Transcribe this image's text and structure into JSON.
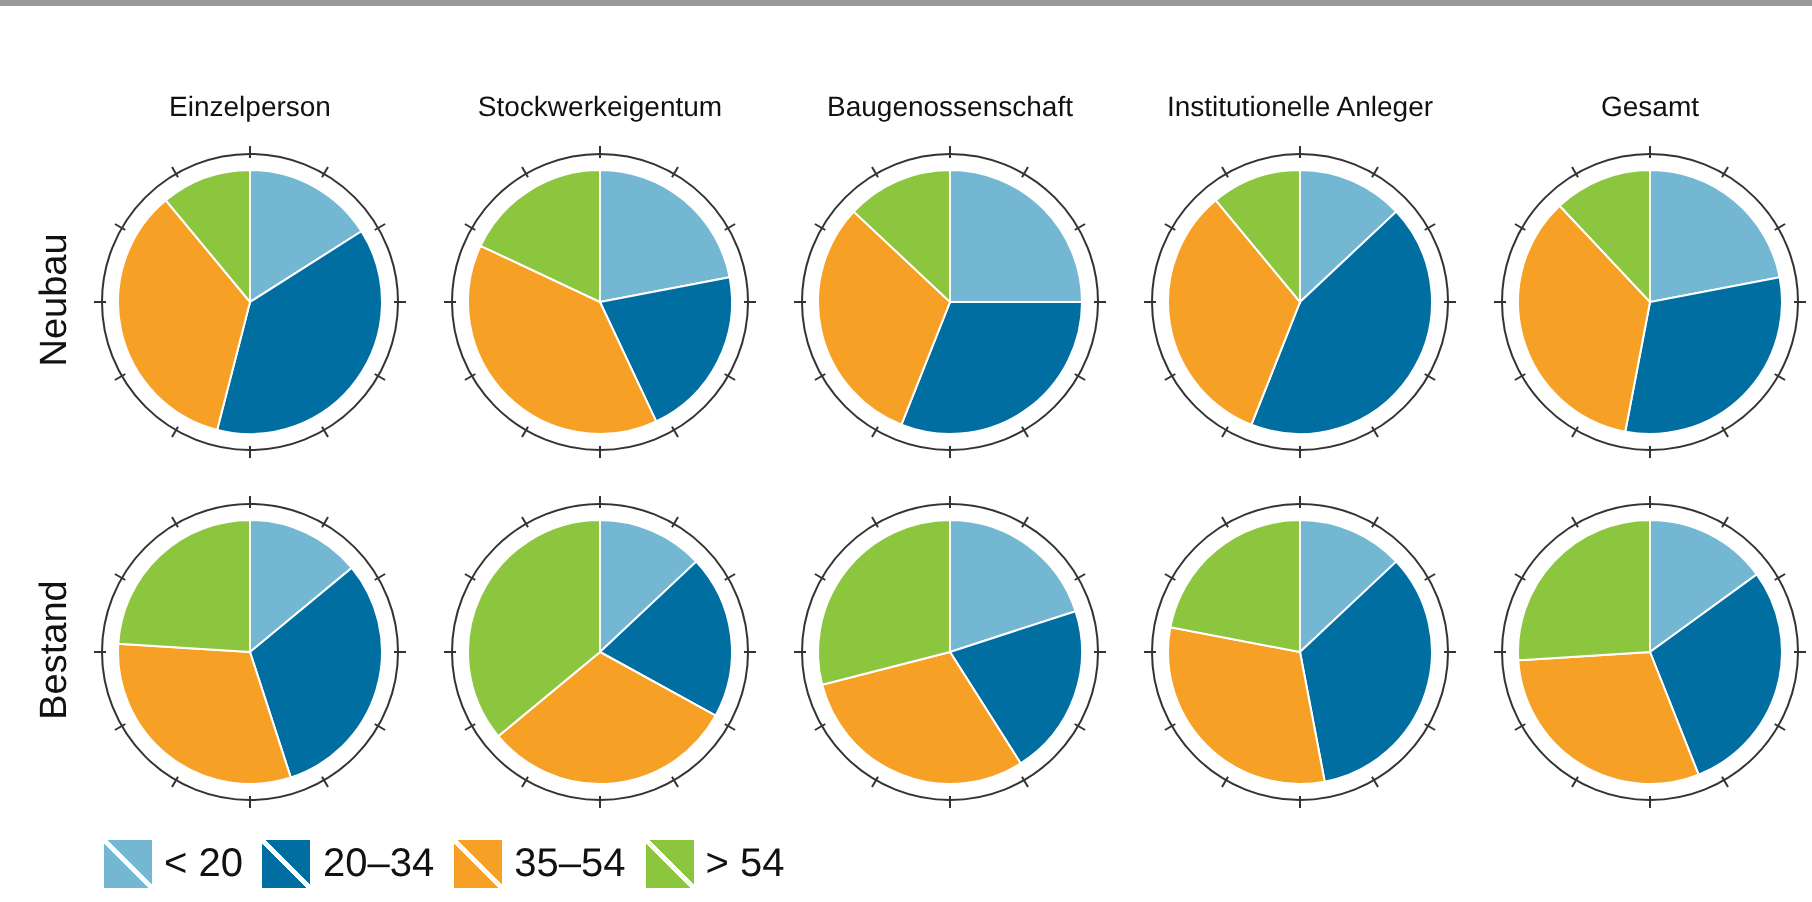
{
  "chart_data": [
    {
      "type": "pie",
      "title": "Einzelperson",
      "ylabel": "Neubau",
      "legend": "bottom",
      "categories": [
        "< 20",
        "20–34",
        "35–54",
        "> 54"
      ],
      "values": [
        16,
        38,
        35,
        11
      ],
      "colors": [
        "#74b7d3",
        "#006ea1",
        "#f7a026",
        "#8cc63f"
      ]
    },
    {
      "type": "pie",
      "title": "Stockwerkeigentum",
      "categories": [
        null,
        null,
        null,
        null
      ],
      "values": [
        22,
        21,
        39,
        18
      ],
      "colors": [
        "#74b7d3",
        "#006ea1",
        "#f7a026",
        "#8cc63f"
      ]
    },
    {
      "type": "pie",
      "title": "Baugenossenschaft",
      "categories": [
        null,
        null,
        null,
        null
      ],
      "values": [
        25,
        31,
        31,
        13
      ],
      "colors": [
        "#74b7d3",
        "#006ea1",
        "#f7a026",
        "#8cc63f"
      ]
    },
    {
      "type": "pie",
      "title": "Institutionelle Anleger",
      "categories": [
        null,
        null,
        null,
        null
      ],
      "values": [
        13,
        43,
        33,
        11
      ],
      "colors": [
        "#74b7d3",
        "#006ea1",
        "#f7a026",
        "#8cc63f"
      ]
    },
    {
      "type": "pie",
      "title": "Gesamt",
      "categories": [
        null,
        null,
        null,
        null
      ],
      "values": [
        22,
        31,
        35,
        12
      ],
      "colors": [
        "#74b7d3",
        "#006ea1",
        "#f7a026",
        "#8cc63f"
      ]
    },
    {
      "type": "pie",
      "ylabel": "Bestand",
      "categories": [
        null,
        null,
        null,
        null
      ],
      "values": [
        14,
        31,
        31,
        24
      ],
      "colors": [
        "#74b7d3",
        "#006ea1",
        "#f7a026",
        "#8cc63f"
      ]
    },
    {
      "type": "pie",
      "categories": [
        null,
        null,
        null,
        null
      ],
      "values": [
        13,
        20,
        31,
        36
      ],
      "colors": [
        "#74b7d3",
        "#006ea1",
        "#f7a026",
        "#8cc63f"
      ]
    },
    {
      "type": "pie",
      "categories": [
        null,
        null,
        null,
        null
      ],
      "values": [
        20,
        21,
        30,
        29
      ],
      "colors": [
        "#74b7d3",
        "#006ea1",
        "#f7a026",
        "#8cc63f"
      ]
    },
    {
      "type": "pie",
      "categories": [
        null,
        null,
        null,
        null
      ],
      "values": [
        13,
        34,
        31,
        22
      ],
      "colors": [
        "#74b7d3",
        "#006ea1",
        "#f7a026",
        "#8cc63f"
      ]
    },
    {
      "type": "pie",
      "categories": [
        null,
        null,
        null,
        null
      ],
      "values": [
        15,
        29,
        30,
        26
      ],
      "colors": [
        "#74b7d3",
        "#006ea1",
        "#f7a026",
        "#8cc63f"
      ]
    }
  ]
}
